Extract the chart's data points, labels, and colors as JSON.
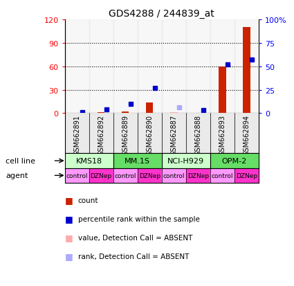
{
  "title": "GDS4288 / 244839_at",
  "samples": [
    "GSM662891",
    "GSM662892",
    "GSM662889",
    "GSM662890",
    "GSM662887",
    "GSM662888",
    "GSM662893",
    "GSM662894"
  ],
  "count_values": [
    0,
    1,
    2,
    14,
    1,
    0,
    60,
    110
  ],
  "count_absent": [
    false,
    false,
    false,
    false,
    true,
    false,
    false,
    false
  ],
  "rank_values": [
    1,
    4,
    10,
    27,
    6,
    3,
    52,
    57
  ],
  "rank_absent": [
    false,
    false,
    false,
    false,
    true,
    false,
    false,
    false
  ],
  "cell_lines": [
    {
      "label": "KMS18",
      "span": [
        0,
        2
      ]
    },
    {
      "label": "MM.1S",
      "span": [
        2,
        4
      ]
    },
    {
      "label": "NCI-H929",
      "span": [
        4,
        6
      ]
    },
    {
      "label": "OPM-2",
      "span": [
        6,
        8
      ]
    }
  ],
  "agents": [
    "control",
    "DZNep",
    "control",
    "DZNep",
    "control",
    "DZNep",
    "control",
    "DZNep"
  ],
  "cell_line_color_light": "#ccffcc",
  "cell_line_color_dark": "#66dd66",
  "control_color": "#ff99ff",
  "dznep_color": "#ff33cc",
  "sample_bg_color": "#cccccc",
  "ylim_left": [
    0,
    120
  ],
  "ylim_right": [
    0,
    100
  ],
  "yticks_left": [
    0,
    30,
    60,
    90,
    120
  ],
  "ytick_labels_left": [
    "0",
    "30",
    "60",
    "90",
    "120"
  ],
  "yticks_right": [
    0,
    25,
    50,
    75,
    100
  ],
  "ytick_labels_right": [
    "0",
    "25",
    "50",
    "75",
    "100%"
  ],
  "count_color": "#cc2200",
  "rank_color": "#0000cc",
  "count_absent_color": "#ffaaaa",
  "rank_absent_color": "#aaaaff",
  "legend_items": [
    {
      "label": "count",
      "color": "#cc2200"
    },
    {
      "label": "percentile rank within the sample",
      "color": "#0000cc"
    },
    {
      "label": "value, Detection Call = ABSENT",
      "color": "#ffaaaa"
    },
    {
      "label": "rank, Detection Call = ABSENT",
      "color": "#aaaaff"
    }
  ]
}
